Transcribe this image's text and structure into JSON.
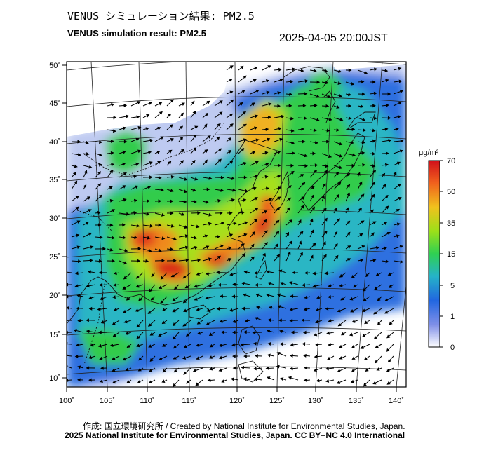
{
  "header": {
    "title_jp": "VENUS シミュレーション結果: PM2.5",
    "title_en": "VENUS simulation result: PM2.5",
    "datetime": "2025-04-05 20:00JST"
  },
  "axes": {
    "lat_labels": [
      "50˚",
      "45˚",
      "40˚",
      "35˚",
      "30˚",
      "25˚",
      "20˚",
      "15˚",
      "10˚"
    ],
    "lon_labels": [
      "100˚",
      "105˚",
      "110˚",
      "115˚",
      "120˚",
      "125˚",
      "130˚",
      "135˚",
      "140˚"
    ],
    "lat_range": [
      9,
      51
    ],
    "lon_range": [
      100,
      141
    ]
  },
  "colorbar": {
    "unit": "μg/m³",
    "tick_labels": [
      "70",
      "50",
      "35",
      "15",
      "5",
      "1",
      "0"
    ],
    "colors": [
      "#ffffff",
      "#7f8fe8",
      "#2166e0",
      "#25b3c8",
      "#2fd052",
      "#9be019",
      "#f0c21d",
      "#f0611d",
      "#d0101a"
    ]
  },
  "footer": {
    "credit_line": "作成: 国立環境研究所 / Created by National Institute for Environmental Studies, Japan.",
    "license_line": "2025 National Institute for Environmental Studies, Japan. CC BY−NC 4.0 International"
  }
}
